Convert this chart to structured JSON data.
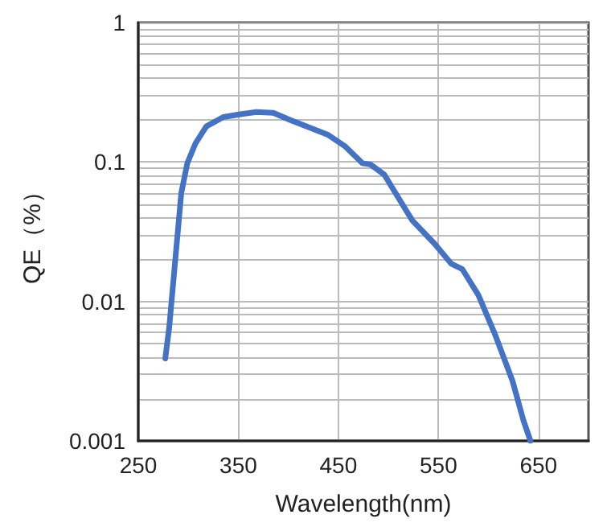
{
  "chart_data": {
    "type": "line",
    "xlabel": "Wavelength(nm)",
    "ylabel": "QE（%）",
    "x": [
      277,
      281,
      288,
      293,
      299,
      307,
      318,
      335,
      352,
      368,
      385,
      402,
      418,
      440,
      457,
      474,
      482,
      496,
      507,
      524,
      546,
      563,
      574,
      590,
      607,
      624,
      635,
      642
    ],
    "series": [
      {
        "color": "#4472c4",
        "values": [
          0.0039,
          0.0066,
          0.024,
          0.06,
          0.098,
          0.135,
          0.18,
          0.21,
          0.22,
          0.228,
          0.225,
          0.2,
          0.18,
          0.156,
          0.129,
          0.098,
          0.096,
          0.081,
          0.06,
          0.038,
          0.026,
          0.0186,
          0.017,
          0.0111,
          0.0057,
          0.0027,
          0.0014,
          0.001
        ]
      }
    ],
    "xlim": [
      250,
      700
    ],
    "xticks": [
      250,
      350,
      450,
      550,
      650
    ],
    "ylim": [
      0.001,
      1
    ],
    "yticks": [
      0.001,
      0.01,
      0.1,
      1
    ],
    "log": "y",
    "grid": true,
    "marker": "none",
    "line_style": "solid"
  }
}
